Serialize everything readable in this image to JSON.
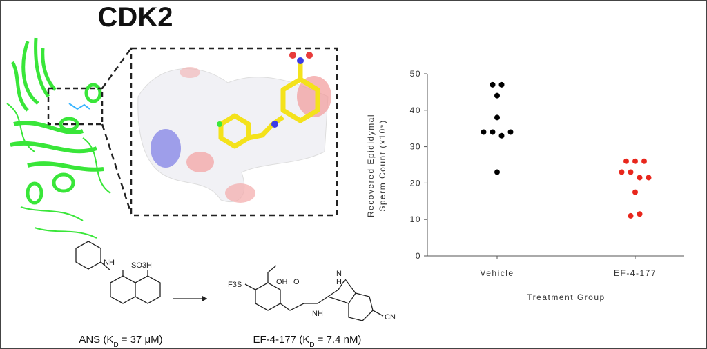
{
  "figure": {
    "title": "CDK2",
    "ans": {
      "labels": [
        "NH",
        "SO3H"
      ],
      "caption": [
        "ANS (K",
        "D",
        " = 37 μM)"
      ]
    },
    "ef": {
      "labels": [
        "F3S",
        "OH",
        "O",
        "NH",
        "N",
        "H",
        "CN"
      ],
      "caption": [
        "EF-4-177 (K",
        "D",
        " = 7.4 nM)"
      ]
    }
  },
  "chart_data": {
    "type": "dot",
    "y_label": [
      "Recovered Epididymal",
      "Sperm Count (x10⁶)"
    ],
    "x_label": "Treatment Group",
    "categories": [
      "Vehicle",
      "EF-4-177"
    ],
    "values": [
      [
        47,
        47,
        44,
        38,
        34,
        34,
        33,
        34,
        23
      ],
      [
        26,
        26,
        26,
        23,
        23,
        21.5,
        21.5,
        17.5,
        11,
        11.5
      ]
    ],
    "colors": [
      "#000000",
      "#e8261c"
    ],
    "ylim": [
      0,
      50
    ],
    "yticks": [
      0,
      10,
      20,
      30,
      40,
      50
    ]
  }
}
